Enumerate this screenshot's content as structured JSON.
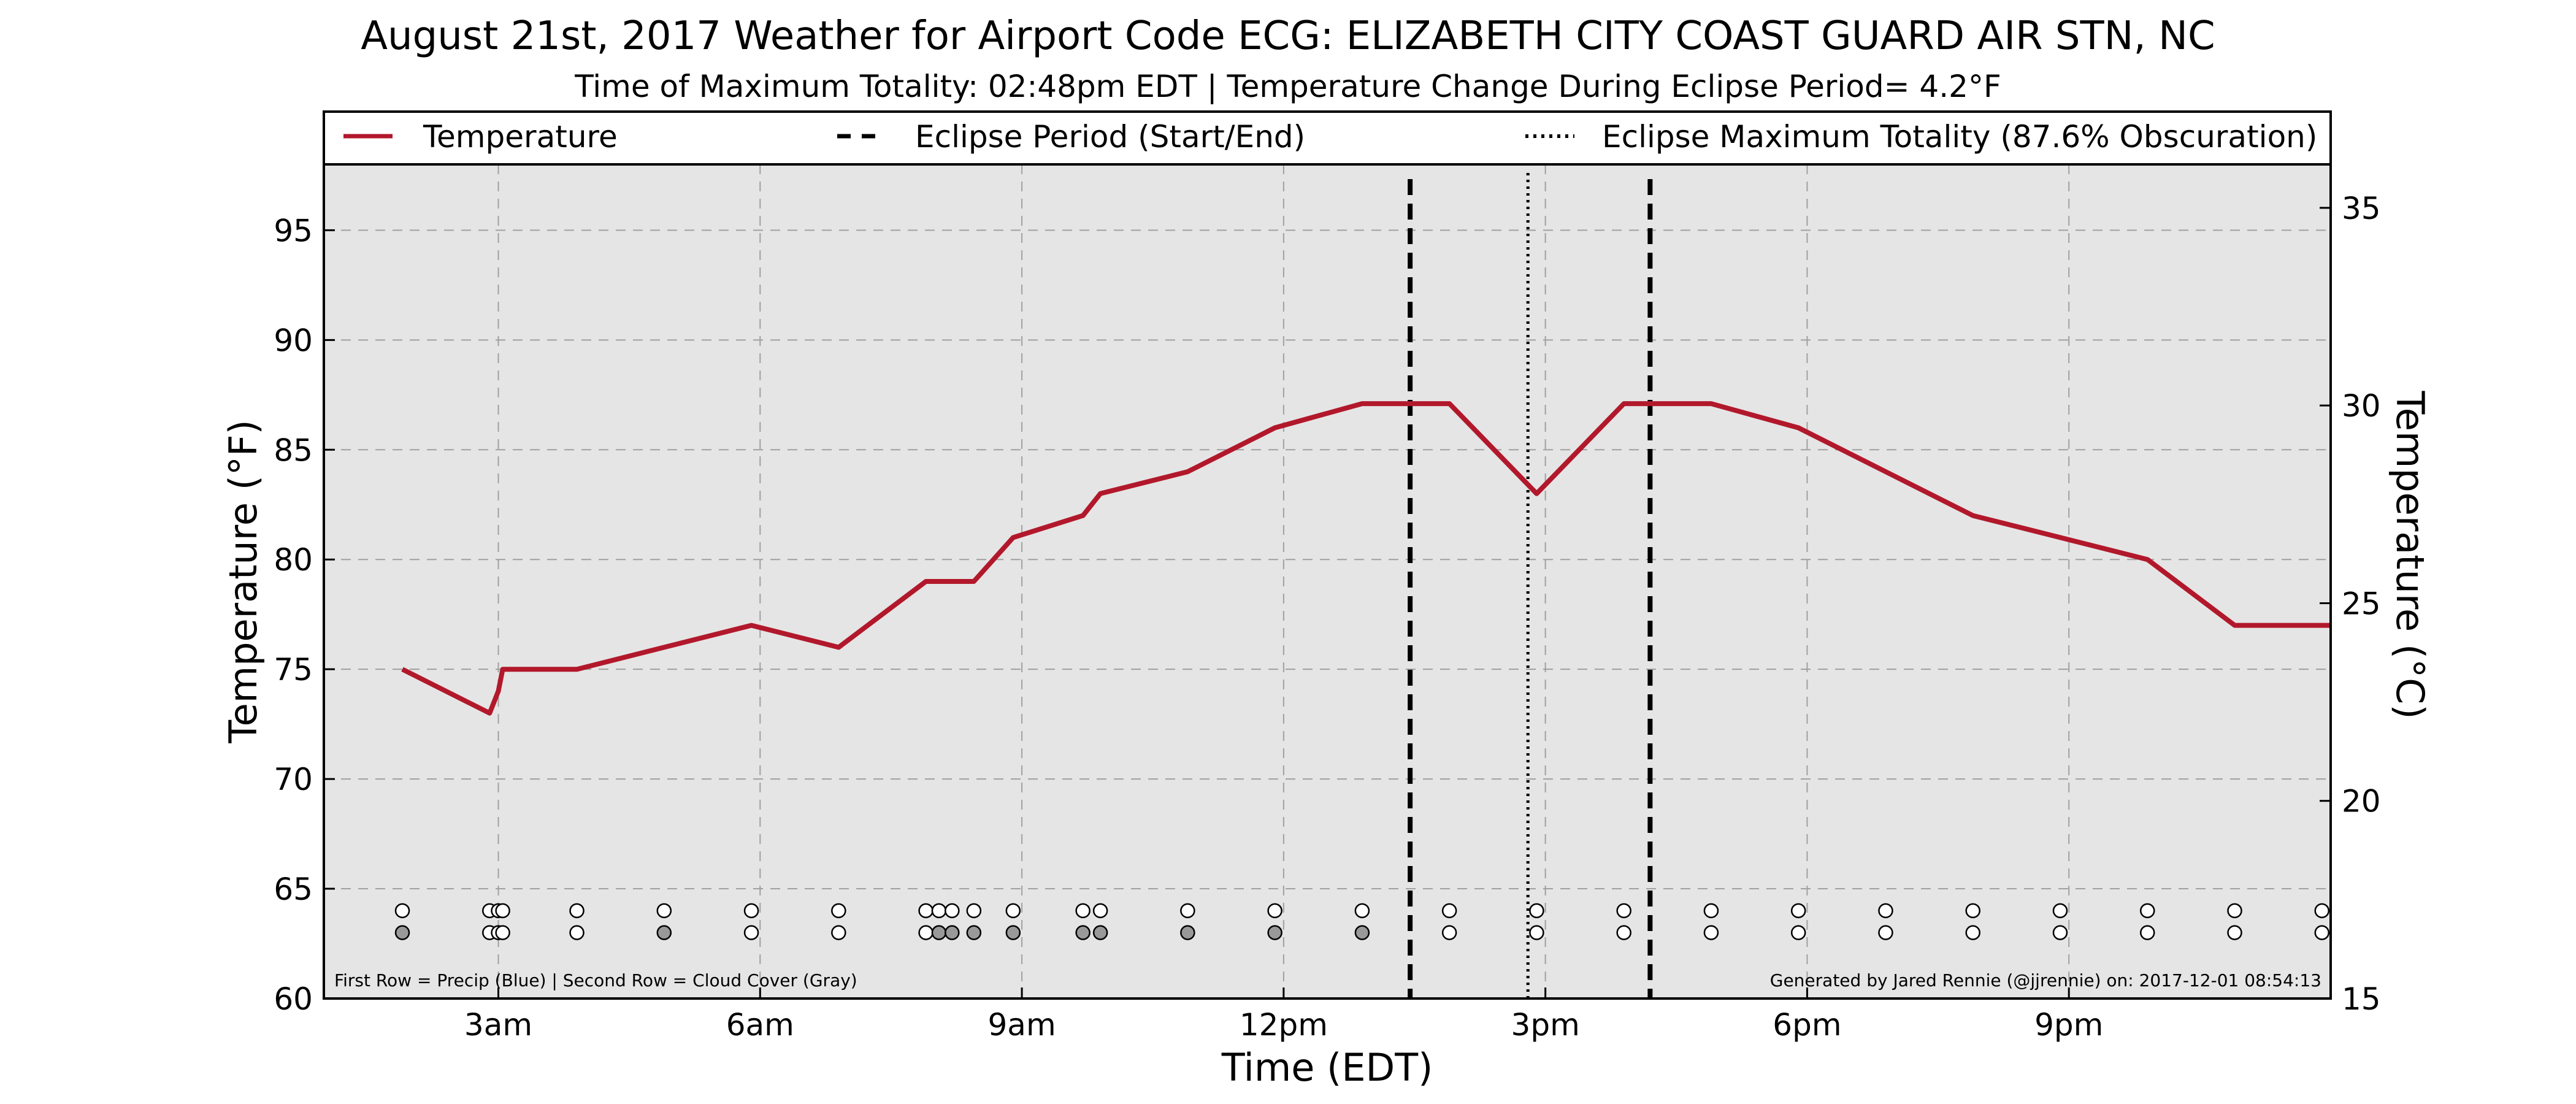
{
  "title": "August 21st, 2017 Weather for Airport Code ECG: ELIZABETH CITY COAST GUARD AIR STN, NC",
  "subtitle": "Time of Maximum Totality: 02:48pm EDT | Temperature Change During Eclipse Period= 4.2°F",
  "footnote_left": "First Row = Precip (Blue) | Second Row = Cloud Cover (Gray)",
  "footnote_right": "Generated by Jared Rennie (@jjrennie) on: 2017-12-01 08:54:13",
  "colors": {
    "temperature": "#b2182b",
    "plot_background": "#e5e5e5",
    "cloud_cover_fill": "#999999",
    "marker_empty": "#ffffff"
  },
  "chart_data": {
    "type": "line",
    "xlabel": "Time (EDT)",
    "ylabel": "Temperature (°F)",
    "ylabel_right": "Temperature (°C)",
    "xlim": [
      1.0,
      24.0
    ],
    "ylim": [
      60,
      98
    ],
    "ylim_right": [
      15,
      36.1
    ],
    "grid": true,
    "legend_position": "top",
    "x_ticks": [
      {
        "value": 3,
        "label": "3am"
      },
      {
        "value": 6,
        "label": "6am"
      },
      {
        "value": 9,
        "label": "9am"
      },
      {
        "value": 12,
        "label": "12pm"
      },
      {
        "value": 15,
        "label": "3pm"
      },
      {
        "value": 18,
        "label": "6pm"
      },
      {
        "value": 21,
        "label": "9pm"
      }
    ],
    "y_ticks": [
      60,
      65,
      70,
      75,
      80,
      85,
      90,
      95
    ],
    "y_ticks_right": [
      15,
      20,
      25,
      30,
      35
    ],
    "legend": [
      {
        "label": "Temperature",
        "style": "solid"
      },
      {
        "label": "Eclipse Period (Start/End)",
        "style": "dashed"
      },
      {
        "label": "Eclipse Maximum Totality (87.6% Obscuration)",
        "style": "dotted"
      }
    ],
    "series": [
      {
        "name": "Temperature",
        "x": [
          1.9,
          2.9,
          3.0,
          3.05,
          3.9,
          4.9,
          5.9,
          6.9,
          7.9,
          8.45,
          8.9,
          9.7,
          9.9,
          10.9,
          11.9,
          12.9,
          13.9,
          14.9,
          15.9,
          16.9,
          17.9,
          18.9,
          19.9,
          20.9,
          21.9,
          22.9,
          24.0
        ],
        "y": [
          75,
          73,
          74,
          75,
          75,
          76,
          77,
          76,
          79,
          79,
          81,
          82,
          83,
          84,
          86,
          87.1,
          87.1,
          83,
          87.1,
          87.1,
          86,
          84,
          82,
          81,
          80,
          77,
          77
        ]
      }
    ],
    "eclipse_start": 13.45,
    "eclipse_max": 14.8,
    "eclipse_end": 16.2,
    "precip_row": {
      "y": 64,
      "x": [
        1.9,
        2.9,
        3.0,
        3.05,
        3.9,
        4.9,
        5.9,
        6.9,
        7.9,
        8.05,
        8.2,
        8.45,
        8.9,
        9.7,
        9.9,
        10.9,
        11.9,
        12.9,
        13.9,
        14.9,
        15.9,
        16.9,
        17.9,
        18.9,
        19.9,
        20.9,
        21.9,
        22.9,
        23.9
      ]
    },
    "cloud_row": {
      "y": 63,
      "x": [
        1.9,
        2.9,
        3.0,
        3.05,
        3.9,
        4.9,
        5.9,
        6.9,
        7.9,
        8.05,
        8.2,
        8.45,
        8.9,
        9.7,
        9.9,
        10.9,
        11.9,
        12.9,
        13.9,
        14.9,
        15.9,
        16.9,
        17.9,
        18.9,
        19.9,
        20.9,
        21.9,
        22.9,
        23.9
      ],
      "filled": [
        true,
        false,
        false,
        false,
        false,
        true,
        false,
        false,
        false,
        true,
        true,
        true,
        true,
        true,
        true,
        true,
        true,
        true,
        false,
        false,
        false,
        false,
        false,
        false,
        false,
        false,
        false,
        false,
        false
      ]
    }
  }
}
